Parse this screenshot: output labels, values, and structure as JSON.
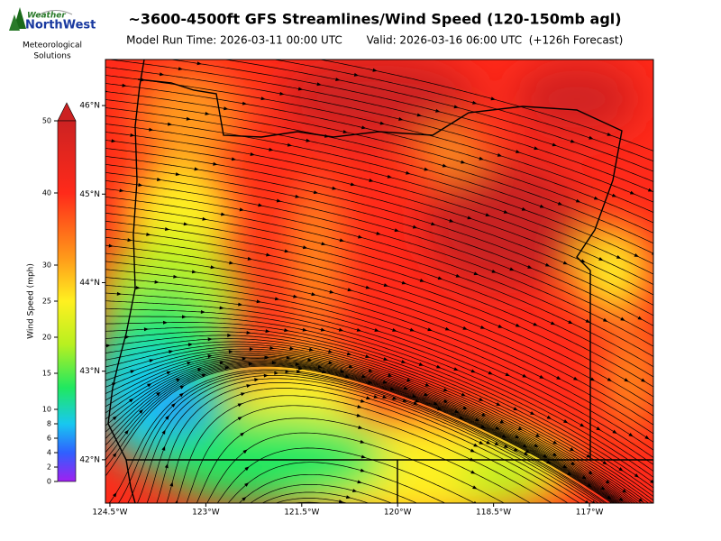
{
  "header": {
    "logo_top": "Weather",
    "logo_name": "NorthWest",
    "org_lines": [
      "Meteorological",
      "Solutions"
    ],
    "title": "~3600-4500ft GFS Streamlines/Wind Speed (120-150mb agl)",
    "model_run": "Model Run Time: 2026-03-11 00:00 UTC",
    "valid": "Valid: 2026-03-16 06:00 UTC  (+126h Forecast)"
  },
  "colorbar": {
    "label": "Wind Speed (mph)",
    "lim": [
      0,
      50
    ],
    "ticks": [
      0,
      2,
      4,
      6,
      8,
      10,
      15,
      20,
      25,
      30,
      40,
      50
    ]
  },
  "map": {
    "xlim": [
      -124.57,
      -116.0
    ],
    "ylim": [
      41.51,
      46.52
    ],
    "xticks": [
      {
        "value": -124.5,
        "label": "124.5°W"
      },
      {
        "value": -123,
        "label": "123°W"
      },
      {
        "value": -121.5,
        "label": "121.5°W"
      },
      {
        "value": -120,
        "label": "120°W"
      },
      {
        "value": -118.5,
        "label": "118.5°W"
      },
      {
        "value": -117,
        "label": "117°W"
      }
    ],
    "yticks": [
      {
        "value": 46,
        "label": "46°N"
      },
      {
        "value": 45,
        "label": "45°N"
      },
      {
        "value": 44,
        "label": "44°N"
      },
      {
        "value": 43,
        "label": "43°N"
      },
      {
        "value": 42,
        "label": "42°N"
      }
    ]
  }
}
